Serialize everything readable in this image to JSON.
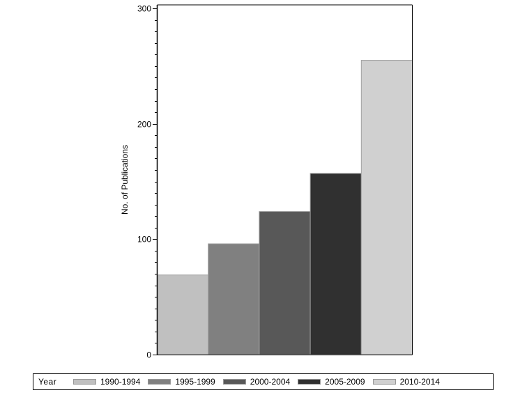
{
  "chart_data": {
    "type": "bar",
    "title": "",
    "xlabel": "",
    "ylabel": "No. of Publications",
    "ylim": [
      0,
      300
    ],
    "yticks": [
      0,
      100,
      200,
      300
    ],
    "minor_ticks_per_major": 10,
    "grid": false,
    "legend_position": "bottom",
    "legend_title": "Year",
    "categories": [
      "1990-1994",
      "1995-1999",
      "2000-2004",
      "2005-2009",
      "2010-2014"
    ],
    "values": [
      69,
      96,
      124,
      157,
      255
    ],
    "colors": [
      "#c0c0c0",
      "#808080",
      "#585858",
      "#303030",
      "#d0d0d0"
    ]
  },
  "legend": {
    "title": "Year",
    "items": [
      {
        "label": "1990-1994",
        "color": "#c0c0c0"
      },
      {
        "label": "1995-1999",
        "color": "#808080"
      },
      {
        "label": "2000-2004",
        "color": "#585858"
      },
      {
        "label": "2005-2009",
        "color": "#303030"
      },
      {
        "label": "2010-2014",
        "color": "#d0d0d0"
      }
    ]
  }
}
